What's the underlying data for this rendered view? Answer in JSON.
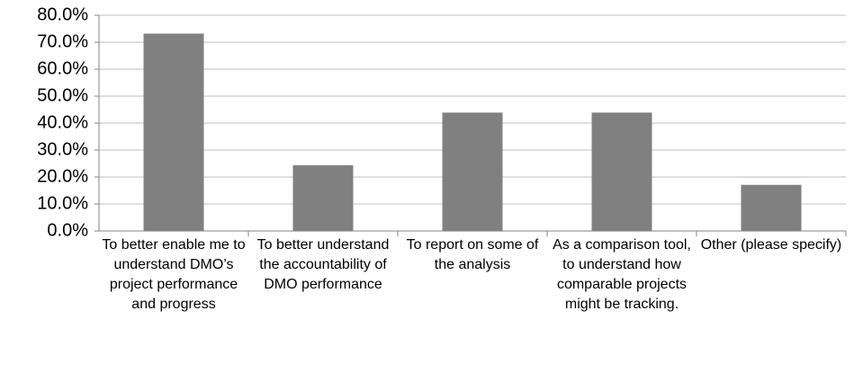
{
  "chart_data": {
    "type": "bar",
    "categories": [
      "To better enable me to understand DMO’s project performance and progress",
      "To better understand the accountability of DMO performance",
      "To report on some of the analysis",
      "As a comparison tool, to understand how comparable projects might be tracking.",
      "Other (please specify)"
    ],
    "values": [
      73.2,
      24.4,
      43.9,
      43.9,
      17.1
    ],
    "color": "#808080",
    "ylim": [
      0,
      80
    ],
    "yticks": [
      {
        "value": 0,
        "label": "0.0%"
      },
      {
        "value": 10,
        "label": "10.0%"
      },
      {
        "value": 20,
        "label": "20.0%"
      },
      {
        "value": 30,
        "label": "30.0%"
      },
      {
        "value": 40,
        "label": "40.0%"
      },
      {
        "value": 50,
        "label": "50.0%"
      },
      {
        "value": 60,
        "label": "60.0%"
      },
      {
        "value": 70,
        "label": "70.0%"
      },
      {
        "value": 80,
        "label": "80.0%"
      }
    ],
    "grid": true
  }
}
